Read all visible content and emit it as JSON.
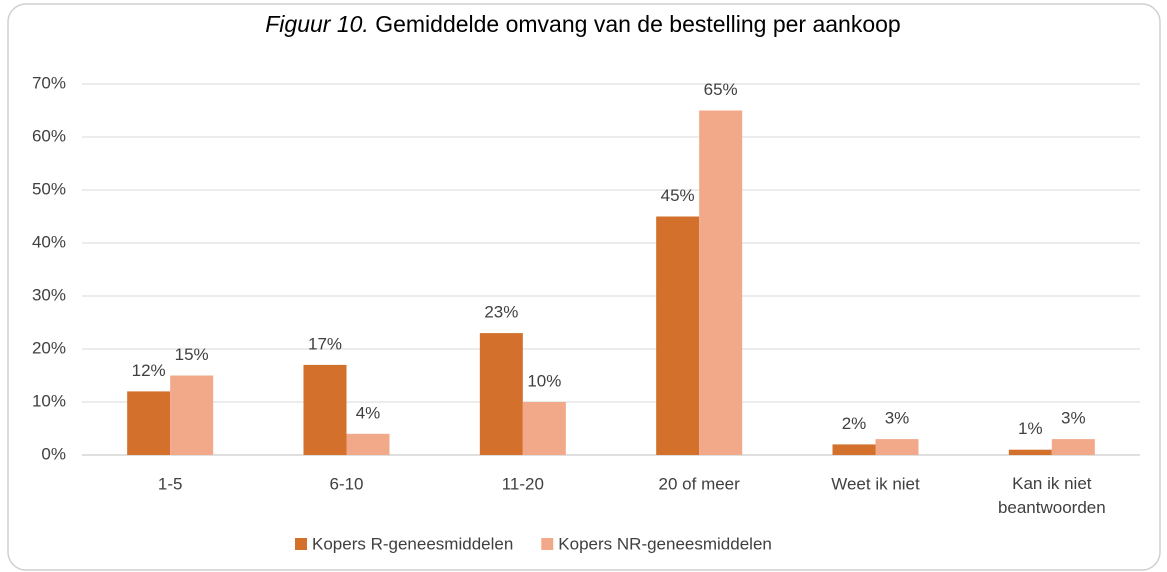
{
  "chart_data": {
    "type": "bar",
    "title_label": "Figuur 10.",
    "title": "Gemiddelde omvang van de bestelling per aankoop",
    "categories": [
      "1-5",
      "6-10",
      "11-20",
      "20 of meer",
      "Weet ik niet",
      "Kan ik niet beantwoorden"
    ],
    "series": [
      {
        "name": "Kopers R-geneesmiddelen",
        "color": "#d2702c",
        "values": [
          12,
          17,
          23,
          45,
          2,
          1
        ],
        "value_labels": [
          "12%",
          "17%",
          "23%",
          "45%",
          "2%",
          "1%"
        ]
      },
      {
        "name": "Kopers NR-geneesmiddelen",
        "color": "#f2a98a",
        "values": [
          15,
          4,
          10,
          65,
          3,
          3
        ],
        "value_labels": [
          "15%",
          "4%",
          "10%",
          "65%",
          "3%",
          "3%"
        ]
      }
    ],
    "ylim": [
      0,
      70
    ],
    "yticks": [
      {
        "value": 0,
        "label": "0%"
      },
      {
        "value": 10,
        "label": "10%"
      },
      {
        "value": 20,
        "label": "20%"
      },
      {
        "value": 30,
        "label": "30%"
      },
      {
        "value": 40,
        "label": "40%"
      },
      {
        "value": 50,
        "label": "50%"
      },
      {
        "value": 60,
        "label": "60%"
      },
      {
        "value": 70,
        "label": "70%"
      }
    ],
    "grid": true,
    "legend": "bottom"
  }
}
